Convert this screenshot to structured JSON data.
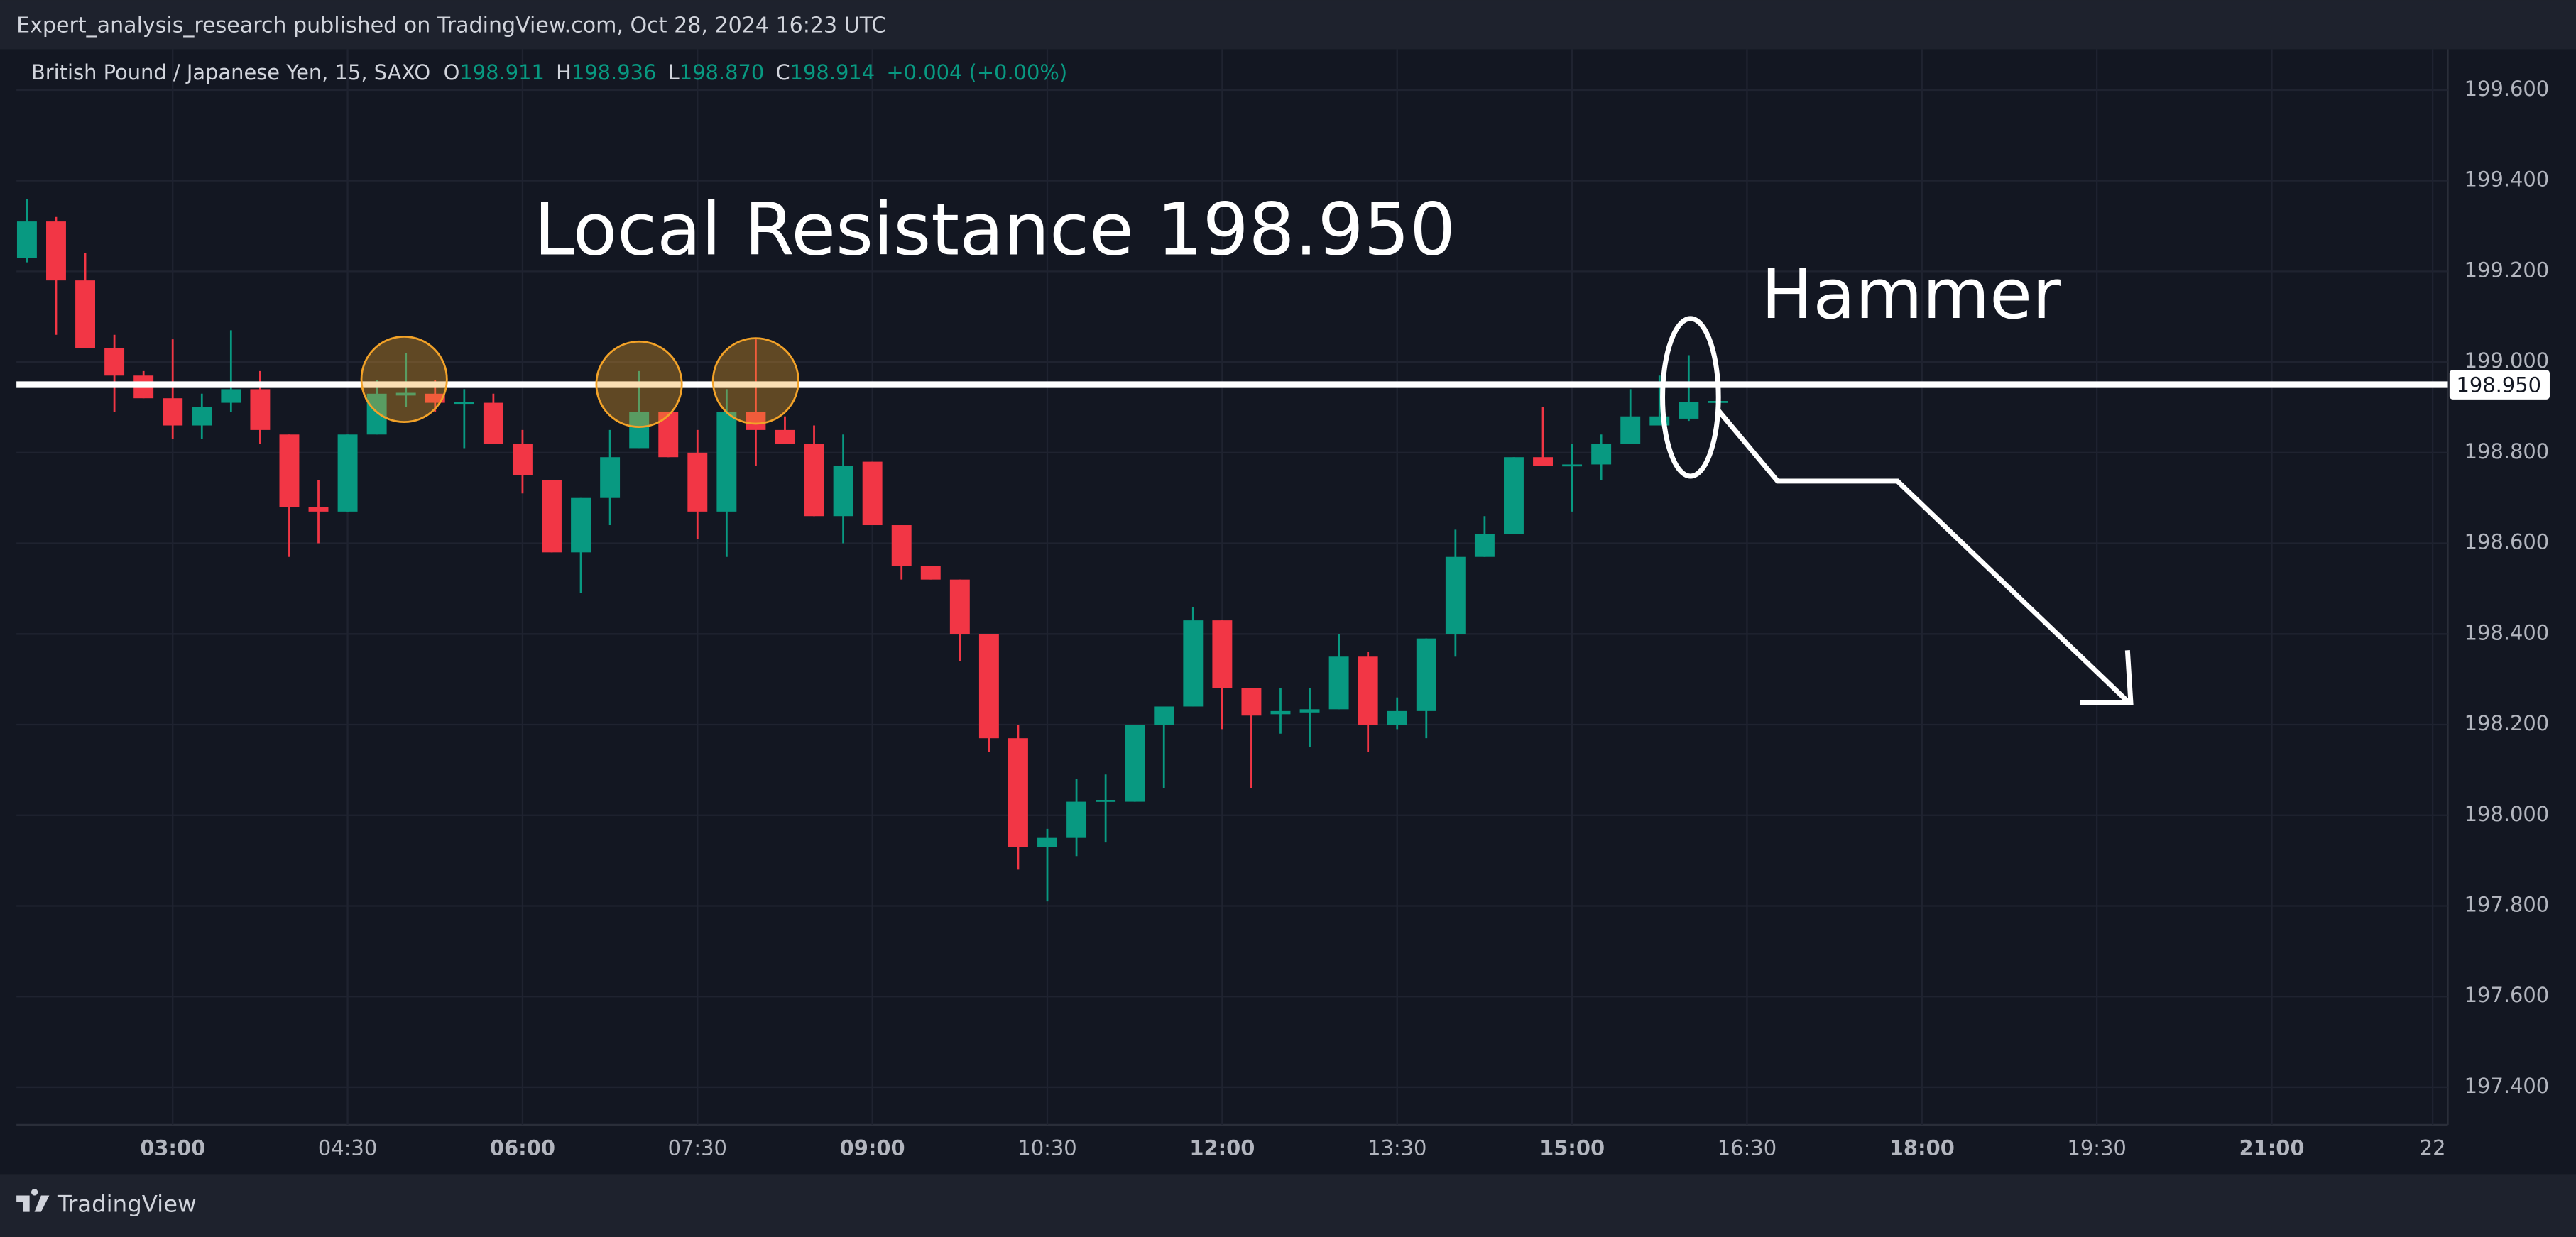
{
  "header": {
    "published": "Expert_analysis_research published on TradingView.com, Oct 28, 2024 16:23 UTC"
  },
  "footer": {
    "brand": "TradingView"
  },
  "chart_data": {
    "type": "candlestick",
    "title": "British Pound / Japanese Yen, 15, SAXO",
    "legend_ohlc": [
      {
        "key": "O",
        "value": "198.911"
      },
      {
        "key": "H",
        "value": "198.936"
      },
      {
        "key": "L",
        "value": "198.870"
      },
      {
        "key": "C",
        "value": "198.914"
      }
    ],
    "change": "+0.004 (+0.00%)",
    "x": [
      1.75,
      2,
      2.25,
      2.5,
      2.75,
      3,
      3.25,
      3.5,
      3.75,
      4,
      4.25,
      4.5,
      4.75,
      5,
      5.25,
      5.5,
      5.75,
      6,
      6.25,
      6.5,
      6.75,
      7,
      7.25,
      7.5,
      7.75,
      8,
      8.25,
      8.5,
      8.75,
      9,
      9.25,
      9.5,
      9.75,
      10,
      10.25,
      10.5,
      10.75,
      11,
      11.25,
      11.5,
      11.75,
      12,
      12.25,
      12.5,
      12.75,
      13,
      13.25,
      13.5,
      13.75,
      14,
      14.25,
      14.5,
      14.75,
      15,
      15.25,
      15.5,
      15.75,
      16,
      16.25
    ],
    "open": [
      199.23,
      199.31,
      199.18,
      199.03,
      198.97,
      198.92,
      198.86,
      198.91,
      198.94,
      198.84,
      198.68,
      198.67,
      198.84,
      198.926,
      198.93,
      198.91,
      198.91,
      198.82,
      198.74,
      198.58,
      198.7,
      198.81,
      198.89,
      198.8,
      198.67,
      198.89,
      198.85,
      198.82,
      198.66,
      198.78,
      198.64,
      198.55,
      198.52,
      198.4,
      198.17,
      197.93,
      197.95,
      198.03,
      198.03,
      198.2,
      198.24,
      198.43,
      198.28,
      198.223,
      198.227,
      198.234,
      198.35,
      198.2,
      198.23,
      198.4,
      198.57,
      198.62,
      198.79,
      198.77,
      198.774,
      198.82,
      198.86,
      198.875,
      198.911
    ],
    "high": [
      199.36,
      199.32,
      199.24,
      199.06,
      198.98,
      199.05,
      198.93,
      199.07,
      198.98,
      198.84,
      198.74,
      198.84,
      198.96,
      199.02,
      198.96,
      198.94,
      198.93,
      198.85,
      198.74,
      198.7,
      198.85,
      198.98,
      198.89,
      198.85,
      198.94,
      199.05,
      198.88,
      198.86,
      198.84,
      198.78,
      198.64,
      198.55,
      198.52,
      198.4,
      198.2,
      197.97,
      198.08,
      198.09,
      198.2,
      198.24,
      198.46,
      198.43,
      198.28,
      198.28,
      198.28,
      198.4,
      198.36,
      198.26,
      198.39,
      198.63,
      198.66,
      198.79,
      198.9,
      198.82,
      198.84,
      198.94,
      198.97,
      199.015,
      198.936
    ],
    "low": [
      199.22,
      199.06,
      199.03,
      198.89,
      198.92,
      198.83,
      198.83,
      198.89,
      198.82,
      198.57,
      198.6,
      198.67,
      198.84,
      198.9,
      198.89,
      198.81,
      198.82,
      198.71,
      198.58,
      198.49,
      198.64,
      198.81,
      198.79,
      198.61,
      198.57,
      198.77,
      198.82,
      198.66,
      198.6,
      198.64,
      198.52,
      198.52,
      198.34,
      198.14,
      197.88,
      197.81,
      197.91,
      197.94,
      198.03,
      198.06,
      198.24,
      198.19,
      198.06,
      198.18,
      198.15,
      198.234,
      198.14,
      198.19,
      198.17,
      198.35,
      198.57,
      198.62,
      198.77,
      198.67,
      198.74,
      198.82,
      198.86,
      198.87,
      198.87
    ],
    "close": [
      199.31,
      199.18,
      199.03,
      198.97,
      198.92,
      198.86,
      198.9,
      198.94,
      198.85,
      198.68,
      198.67,
      198.84,
      198.93,
      198.932,
      198.91,
      198.912,
      198.82,
      198.75,
      198.58,
      198.7,
      198.79,
      198.89,
      198.79,
      198.67,
      198.89,
      198.85,
      198.82,
      198.66,
      198.77,
      198.64,
      198.55,
      198.52,
      198.4,
      198.17,
      197.93,
      197.95,
      198.03,
      198.034,
      198.2,
      198.24,
      198.43,
      198.28,
      198.22,
      198.23,
      198.234,
      198.35,
      198.2,
      198.23,
      198.39,
      198.57,
      198.62,
      198.79,
      198.77,
      198.774,
      198.82,
      198.88,
      198.88,
      198.911,
      198.914
    ],
    "up_color": "#089981",
    "down_color": "#f23645",
    "xlim": [
      1.66,
      22.51
    ],
    "xticks": [
      {
        "value": 3,
        "label": "03:00"
      },
      {
        "value": 4.5,
        "label": "04:30"
      },
      {
        "value": 6,
        "label": "06:00"
      },
      {
        "value": 7.5,
        "label": "07:30"
      },
      {
        "value": 9,
        "label": "09:00"
      },
      {
        "value": 10.5,
        "label": "10:30"
      },
      {
        "value": 12,
        "label": "12:00"
      },
      {
        "value": 13.5,
        "label": "13:30"
      },
      {
        "value": 15,
        "label": "15:00"
      },
      {
        "value": 16.5,
        "label": "16:30"
      },
      {
        "value": 18,
        "label": "18:00"
      },
      {
        "value": 19.5,
        "label": "19:30"
      },
      {
        "value": 21,
        "label": "21:00"
      },
      {
        "value": 22.38,
        "label": "22"
      }
    ],
    "ylim": [
      197.317,
      199.69
    ],
    "yticks": [
      {
        "value": 197.4,
        "label": "197.400"
      },
      {
        "value": 197.6,
        "label": "197.600"
      },
      {
        "value": 197.8,
        "label": "197.800"
      },
      {
        "value": 198,
        "label": "198.000"
      },
      {
        "value": 198.2,
        "label": "198.200"
      },
      {
        "value": 198.4,
        "label": "198.400"
      },
      {
        "value": 198.6,
        "label": "198.600"
      },
      {
        "value": 198.8,
        "label": "198.800"
      },
      {
        "value": 199,
        "label": "199.000"
      },
      {
        "value": 199.2,
        "label": "199.200"
      },
      {
        "value": 199.4,
        "label": "199.400"
      },
      {
        "value": 199.6,
        "label": "199.600"
      }
    ],
    "grid": true,
    "resistance": {
      "value": 198.95,
      "label": "198.950"
    },
    "annotations": [
      "Local Resistance 198.950",
      "Hammer"
    ]
  }
}
